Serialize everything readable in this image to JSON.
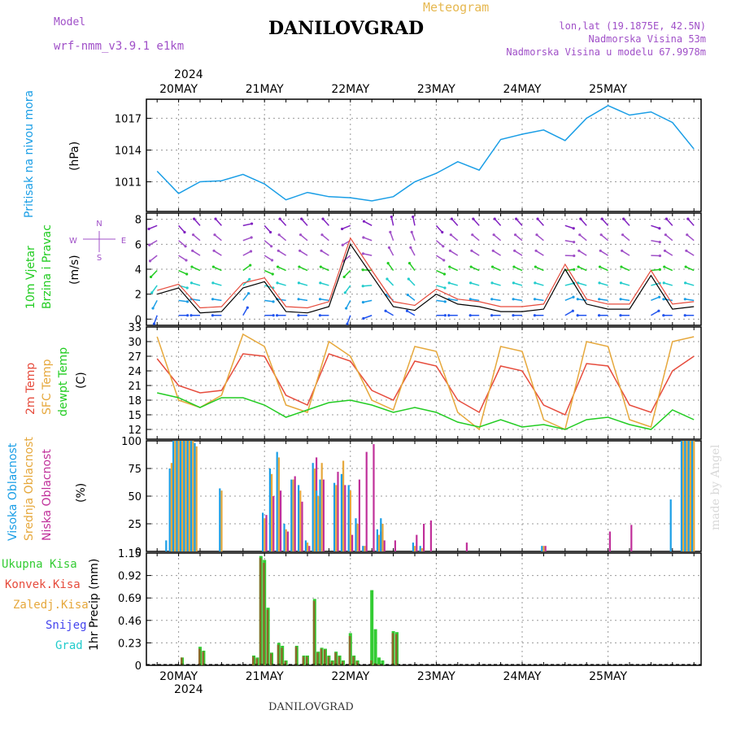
{
  "header": {
    "model_label": "Model",
    "model_name": "wrf-nmm_v3.9.1 e1km",
    "title": "DANILOVGRAD",
    "meteogram_label": "Meteogram",
    "lonlat": "lon,lat (19.1875E, 42.5N)",
    "altitude": "Nadmorska Visina 53m",
    "model_altitude": "Nadmorska Visina u modelu 67.9978m",
    "footer_station": "DANILOVGRAD",
    "watermark": "made by Angel",
    "year_label": "2024"
  },
  "colors": {
    "pressure": "#1a9ee6",
    "temp2m": "#e64b3c",
    "sfc_temp": "#e6a83c",
    "dewpoint": "#22cc22",
    "cloud_high": "#1a9ee6",
    "cloud_mid": "#e6a83c",
    "cloud_low": "#c0309a",
    "precip_total": "#33cc33",
    "precip_conv": "#e64b3c",
    "precip_strat": "#e6a83c",
    "snow": "#4444ee",
    "hail": "#22cccc",
    "wind_speed": "#000000",
    "wind_gust": "#e64b3c",
    "title_purple": "#a050c8",
    "meteogram_gold": "#e6b850"
  },
  "chart_data": [
    {
      "id": "pressure",
      "type": "line",
      "title": "Pritisak na nivou mora",
      "ylabel": "(hPa)",
      "yticks": [
        1011,
        1014,
        1017
      ],
      "ylim": [
        1008.2,
        1018.8
      ],
      "x_days": [
        "20MAY",
        "21MAY",
        "22MAY",
        "23MAY",
        "24MAY",
        "25MAY"
      ],
      "x_hours": [
        -6,
        0,
        6,
        12,
        18,
        24,
        30,
        36,
        42,
        48,
        54,
        60,
        66,
        72,
        78,
        84,
        90,
        96,
        102,
        108,
        114,
        120,
        126,
        132,
        138,
        144
      ],
      "series": [
        {
          "values": [
            1012.0,
            1009.9,
            1011.0,
            1011.1,
            1011.7,
            1010.8,
            1009.3,
            1010.0,
            1009.6,
            1009.5,
            1009.2,
            1009.6,
            1011.0,
            1011.8,
            1012.9,
            1012.1,
            1015.0,
            1015.5,
            1015.9,
            1014.9,
            1017.0,
            1018.2,
            1017.3,
            1017.6,
            1016.6,
            1014.1
          ]
        }
      ]
    },
    {
      "id": "wind",
      "type": "line",
      "title": "10m Vjetar Brzina i Pravac",
      "ylabel": "(m/s)",
      "yticks": [
        0,
        2,
        4,
        6,
        8
      ],
      "ylim": [
        -0.5,
        8.5
      ],
      "compass": {
        "n": "N",
        "s": "S",
        "e": "E",
        "w": "W"
      },
      "x_hours": [
        -6,
        0,
        6,
        12,
        18,
        24,
        30,
        36,
        42,
        48,
        54,
        60,
        66,
        72,
        78,
        84,
        90,
        96,
        102,
        108,
        114,
        120,
        126,
        132,
        138,
        144
      ],
      "series": [
        {
          "name": "speed",
          "values": [
            2.0,
            2.5,
            0.5,
            0.6,
            2.5,
            3.0,
            0.6,
            0.5,
            1.0,
            6.0,
            3.5,
            1.0,
            0.7,
            2.0,
            1.2,
            1.0,
            0.6,
            0.6,
            0.8,
            4.0,
            1.2,
            0.8,
            0.8,
            3.5,
            0.8,
            1.0
          ]
        },
        {
          "name": "gust",
          "values": [
            2.3,
            2.8,
            0.9,
            1.0,
            2.9,
            3.3,
            1.0,
            0.9,
            1.4,
            6.5,
            3.9,
            1.4,
            1.1,
            2.4,
            1.6,
            1.4,
            1.0,
            1.0,
            1.2,
            4.4,
            1.6,
            1.2,
            1.2,
            3.9,
            1.2,
            1.4
          ]
        },
        {
          "name": "direction_deg",
          "values": [
            200,
            90,
            270,
            270,
            30,
            90,
            270,
            270,
            270,
            200,
            250,
            300,
            300,
            90,
            270,
            270,
            270,
            270,
            270,
            60,
            270,
            270,
            270,
            60,
            270,
            270
          ]
        }
      ]
    },
    {
      "id": "temperature",
      "type": "line",
      "title": "2m Temp SFC Temp dewpt Temp",
      "ylabel": "(C)",
      "yticks": [
        12,
        15,
        18,
        21,
        24,
        27,
        30,
        33
      ],
      "ylim": [
        10,
        33
      ],
      "legend": [
        "2m Temp",
        "SFC Temp",
        "dewpt Temp"
      ],
      "x_hours": [
        -6,
        0,
        6,
        12,
        18,
        24,
        30,
        36,
        42,
        48,
        54,
        60,
        66,
        72,
        78,
        84,
        90,
        96,
        102,
        108,
        114,
        120,
        126,
        132,
        138,
        144
      ],
      "series": [
        {
          "name": "2m Temp",
          "values": [
            26.5,
            21.0,
            19.5,
            20.0,
            27.5,
            27.0,
            19.0,
            17.0,
            27.5,
            26.0,
            20.0,
            18.0,
            26.0,
            25.0,
            18.0,
            15.5,
            25.0,
            24.0,
            17.0,
            15.0,
            25.5,
            25.0,
            17.0,
            15.5,
            24.0,
            27.0
          ]
        },
        {
          "name": "SFC Temp",
          "values": [
            31.0,
            18.0,
            16.5,
            19.0,
            31.5,
            29.0,
            17.0,
            15.5,
            30.0,
            27.0,
            18.0,
            16.0,
            29.0,
            28.0,
            15.5,
            12.0,
            29.0,
            28.0,
            14.0,
            12.0,
            30.0,
            29.0,
            14.0,
            12.5,
            30.0,
            31.0
          ]
        },
        {
          "name": "dewpt Temp",
          "values": [
            19.5,
            18.5,
            16.5,
            18.5,
            18.5,
            17.0,
            14.5,
            16.0,
            17.5,
            18.0,
            17.0,
            15.5,
            16.5,
            15.5,
            13.5,
            12.5,
            14.0,
            12.5,
            13.0,
            12.0,
            14.0,
            14.5,
            13.0,
            12.0,
            16.0,
            14.0
          ]
        }
      ]
    },
    {
      "id": "clouds",
      "type": "bar",
      "title": "Visoka Oblacnost Srednja Oblacnost Niska Oblacnost",
      "ylabel": "(%)",
      "yticks": [
        0,
        25,
        50,
        75,
        100
      ],
      "ylim": [
        0,
        100
      ],
      "legend": [
        "Visoka Oblacnost",
        "Srednja Oblacnost",
        "Niska Oblacnost"
      ],
      "x_hours": [
        -3,
        -2,
        -1,
        0,
        1,
        2,
        3,
        4,
        5,
        12,
        24,
        26,
        28,
        30,
        32,
        34,
        36,
        38,
        39,
        40,
        44,
        46,
        48,
        50,
        52,
        54,
        56,
        57,
        60,
        66,
        68,
        70,
        80,
        102,
        120,
        126,
        138,
        141,
        142,
        143,
        144
      ],
      "series": [
        {
          "name": "Visoka Oblacnost",
          "values": [
            10,
            75,
            100,
            100,
            100,
            100,
            100,
            100,
            98,
            57,
            35,
            75,
            90,
            25,
            65,
            60,
            10,
            80,
            55,
            65,
            62,
            70,
            60,
            30,
            5,
            0,
            20,
            30,
            0,
            8,
            5,
            0,
            0,
            5,
            0,
            0,
            47,
            100,
            100,
            100,
            100
          ]
        },
        {
          "name": "Srednja Oblacnost",
          "values": [
            0,
            80,
            100,
            100,
            100,
            100,
            100,
            100,
            95,
            55,
            30,
            70,
            85,
            20,
            65,
            55,
            8,
            75,
            50,
            80,
            60,
            82,
            55,
            25,
            5,
            0,
            15,
            25,
            0,
            5,
            3,
            0,
            0,
            5,
            0,
            0,
            0,
            100,
            100,
            100,
            100
          ]
        },
        {
          "name": "Niska Oblacnost",
          "values": [
            0,
            0,
            0,
            0,
            0,
            0,
            0,
            0,
            0,
            0,
            33,
            50,
            55,
            18,
            68,
            45,
            5,
            85,
            42,
            65,
            72,
            60,
            15,
            65,
            90,
            97,
            18,
            10,
            10,
            15,
            25,
            28,
            8,
            5,
            18,
            24,
            0,
            0,
            0,
            0,
            0
          ]
        }
      ]
    },
    {
      "id": "precip",
      "type": "bar",
      "title": "1hr Precip",
      "ylabel": "1hr Precip (mm)",
      "yticks": [
        0,
        0.23,
        0.46,
        0.69,
        0.92,
        1.15
      ],
      "ylim": [
        0,
        1.15
      ],
      "legend": [
        "Ukupna Kisa",
        "Konvek.Kisa",
        "Zaledj.Kisa",
        "Snijeg",
        "Grad"
      ],
      "x_hours": [
        1,
        6,
        7,
        21,
        22,
        23,
        24,
        25,
        26,
        28,
        29,
        30,
        33,
        35,
        36,
        38,
        39,
        40,
        41,
        42,
        43,
        44,
        45,
        46,
        48,
        49,
        50,
        54,
        55,
        56,
        57,
        60,
        61
      ],
      "series": [
        {
          "name": "Ukupna Kisa",
          "values": [
            0.08,
            0.19,
            0.15,
            0.1,
            0.08,
            1.12,
            1.08,
            0.59,
            0.13,
            0.23,
            0.2,
            0.05,
            0.2,
            0.1,
            0.1,
            0.68,
            0.14,
            0.18,
            0.17,
            0.1,
            0.05,
            0.14,
            0.1,
            0.05,
            0.33,
            0.1,
            0.05,
            0.77,
            0.37,
            0.08,
            0.05,
            0.35,
            0.34
          ]
        },
        {
          "name": "Konvek.Kisa",
          "values": [
            0.08,
            0.17,
            0.14,
            0.09,
            0.07,
            1.1,
            1.05,
            0.57,
            0.12,
            0.21,
            0.18,
            0.04,
            0.19,
            0.09,
            0.09,
            0.66,
            0.13,
            0.17,
            0.16,
            0.09,
            0.04,
            0.13,
            0.09,
            0.04,
            0.3,
            0.09,
            0.04,
            0.05,
            0.02,
            0.01,
            0.01,
            0.33,
            0.32
          ]
        }
      ]
    }
  ]
}
